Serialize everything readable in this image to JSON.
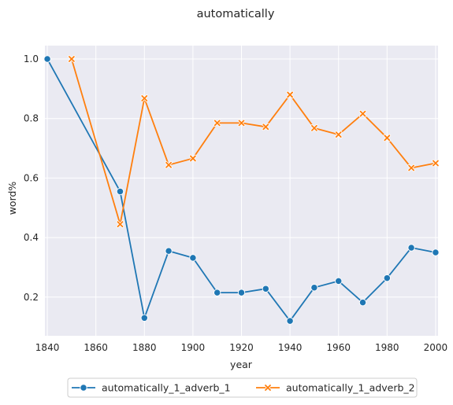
{
  "chart_data": {
    "type": "line",
    "title": "automatically",
    "xlabel": "year",
    "ylabel": "word%",
    "xlim": [
      1839,
      2001
    ],
    "ylim": [
      0.07,
      1.045
    ],
    "x_ticks": [
      1840,
      1860,
      1880,
      1900,
      1920,
      1940,
      1960,
      1980,
      2000
    ],
    "y_ticks": [
      0.2,
      0.4,
      0.6,
      0.8,
      1.0
    ],
    "x_tick_labels": [
      "1840",
      "1860",
      "1880",
      "1900",
      "1920",
      "1940",
      "1960",
      "1980",
      "2000"
    ],
    "y_tick_labels": [
      "0.2",
      "0.4",
      "0.6",
      "0.8",
      "1.0"
    ],
    "grid": true,
    "legend_position": "bottom-center",
    "background": "#eaeaf2",
    "series": [
      {
        "name": "automatically_1_adverb_1",
        "color": "#1f77b4",
        "marker": "circle",
        "points": [
          [
            1840,
            1.0
          ],
          [
            1870,
            0.555
          ],
          [
            1880,
            0.13
          ],
          [
            1890,
            0.355
          ],
          [
            1900,
            0.332
          ],
          [
            1910,
            0.215
          ],
          [
            1920,
            0.215
          ],
          [
            1930,
            0.228
          ],
          [
            1940,
            0.12
          ],
          [
            1950,
            0.232
          ],
          [
            1960,
            0.254
          ],
          [
            1970,
            0.182
          ],
          [
            1980,
            0.264
          ],
          [
            1990,
            0.366
          ],
          [
            2000,
            0.35
          ]
        ]
      },
      {
        "name": "automatically_1_adverb_2",
        "color": "#ff7f0e",
        "marker": "x",
        "points": [
          [
            1850,
            1.0
          ],
          [
            1870,
            0.445
          ],
          [
            1880,
            0.868
          ],
          [
            1890,
            0.644
          ],
          [
            1900,
            0.666
          ],
          [
            1910,
            0.785
          ],
          [
            1920,
            0.785
          ],
          [
            1930,
            0.772
          ],
          [
            1940,
            0.88
          ],
          [
            1950,
            0.768
          ],
          [
            1960,
            0.746
          ],
          [
            1970,
            0.816
          ],
          [
            1980,
            0.735
          ],
          [
            1990,
            0.634
          ],
          [
            2000,
            0.65
          ]
        ]
      }
    ]
  }
}
